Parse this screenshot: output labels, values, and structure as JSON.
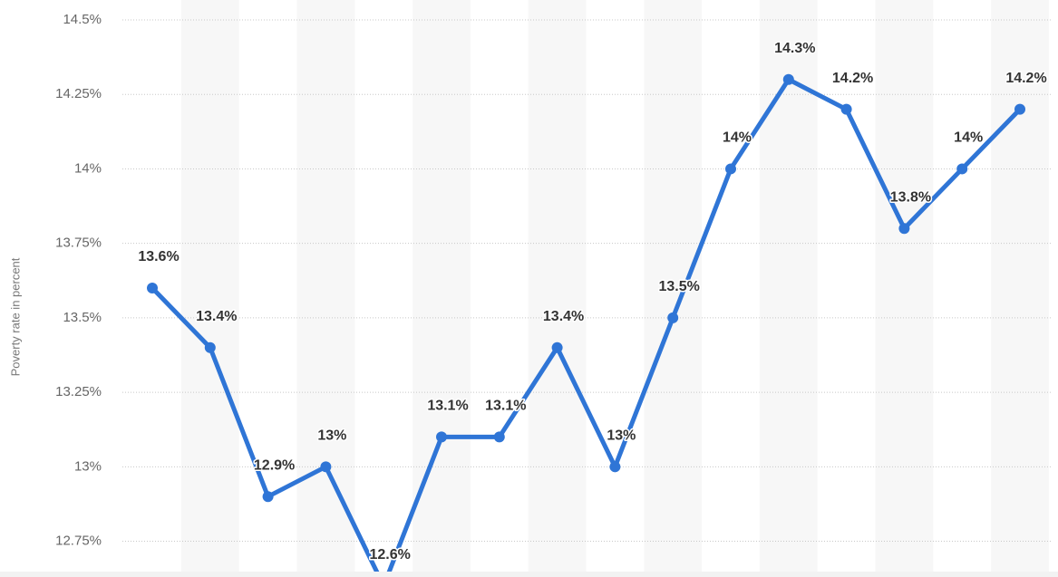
{
  "chart_data": {
    "type": "line",
    "y_axis_label": "Poverty rate in percent",
    "series": [
      {
        "color": "#2f75d6",
        "values": [
          13.6,
          13.4,
          12.9,
          13.0,
          12.6,
          13.1,
          13.1,
          13.4,
          13.0,
          13.5,
          14.0,
          14.3,
          14.2,
          13.8,
          14.0,
          14.2
        ],
        "value_labels": [
          "13.6%",
          "13.4%",
          "12.9%",
          "13%",
          "12.6%",
          "13.1%",
          "13.1%",
          "13.4%",
          "13%",
          "13.5%",
          "14%",
          "14.3%",
          "14.2%",
          "13.8%",
          "14%",
          "14.2%"
        ]
      }
    ],
    "ylim": [
      12.63,
      14.5
    ],
    "yticks": [
      {
        "value": 12.75,
        "label": "12.75%"
      },
      {
        "value": 13.0,
        "label": "13%"
      },
      {
        "value": 13.25,
        "label": "13.25%"
      },
      {
        "value": 13.5,
        "label": "13.5%"
      },
      {
        "value": 13.75,
        "label": "13.75%"
      },
      {
        "value": 14.0,
        "label": "14%"
      },
      {
        "value": 14.25,
        "label": "14.25%"
      },
      {
        "value": 14.5,
        "label": "14.5%"
      }
    ],
    "grid": true
  }
}
